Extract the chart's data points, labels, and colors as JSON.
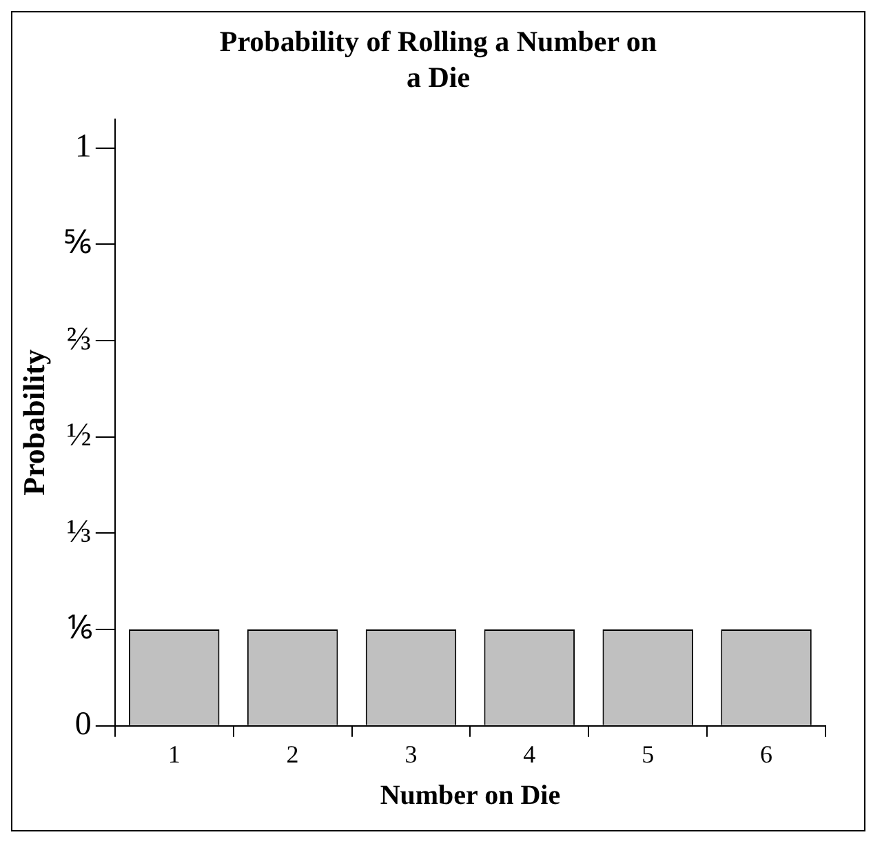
{
  "chart_data": {
    "type": "bar",
    "title": "Probability of Rolling a Number on a Die",
    "xlabel": "Number on Die",
    "ylabel": "Probability",
    "categories": [
      "1",
      "2",
      "3",
      "4",
      "5",
      "6"
    ],
    "values": [
      0.16666666666666666,
      0.16666666666666666,
      0.16666666666666666,
      0.16666666666666666,
      0.16666666666666666,
      0.16666666666666666
    ],
    "color": "#c0c0c0",
    "ylim": [
      0,
      1.05
    ],
    "yticks": [
      0,
      {
        "value": 0.16666666666666666,
        "label": "⅙"
      },
      {
        "value": 0.3333333333333333,
        "label": "⅓"
      },
      {
        "value": 0.5,
        "label": "½"
      },
      {
        "value": 0.6666666666666666,
        "label": "⅔"
      },
      {
        "value": 0.8333333333333334,
        "label": "⅚"
      },
      1
    ],
    "grid": false,
    "legend": false
  }
}
